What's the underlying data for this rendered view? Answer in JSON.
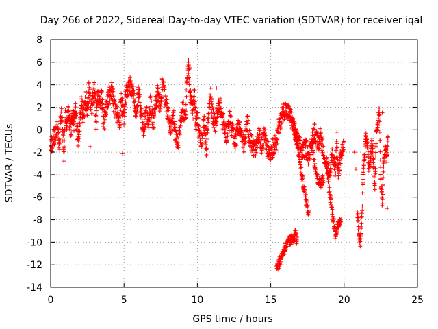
{
  "chart_data": {
    "type": "scatter",
    "title": "Day 266 of 2022, Sidereal Day-to-day VTEC variation (SDTVAR) for receiver iqal",
    "xlabel": "GPS time / hours",
    "ylabel": "SDTVAR / TECUs",
    "xlim": [
      0,
      25
    ],
    "ylim": [
      -14,
      8
    ],
    "xticks": [
      "0",
      "5",
      "10",
      "15",
      "20",
      "25"
    ],
    "yticks": [
      "8",
      "6",
      "4",
      "2",
      "0",
      "-2",
      "-4",
      "-6",
      "-8",
      "-10",
      "-12",
      "-14"
    ],
    "grid": true,
    "marker": "+",
    "color": "#ff0000",
    "series": [
      {
        "name": "SDTVAR",
        "trace": [
          [
            0.0,
            -1.3
          ],
          [
            0.05,
            -1.6
          ],
          [
            0.1,
            -1.1
          ],
          [
            0.5,
            0.2
          ],
          [
            0.6,
            -1.8
          ],
          [
            0.7,
            1.8
          ],
          [
            0.8,
            0.5
          ],
          [
            0.9,
            -2.0
          ],
          [
            1.0,
            1.5
          ],
          [
            1.1,
            0.0
          ],
          [
            1.2,
            2.0
          ],
          [
            1.3,
            0.7
          ],
          [
            1.4,
            0.0
          ],
          [
            1.5,
            1.5
          ],
          [
            1.6,
            0.5
          ],
          [
            1.7,
            1.8
          ],
          [
            1.8,
            0.2
          ],
          [
            1.9,
            -1.2
          ],
          [
            2.0,
            0.8
          ],
          [
            2.1,
            2.5
          ],
          [
            2.2,
            1.0
          ],
          [
            2.4,
            2.8
          ],
          [
            2.5,
            1.5
          ],
          [
            2.6,
            3.5
          ],
          [
            2.8,
            2.0
          ],
          [
            3.0,
            3.8
          ],
          [
            3.1,
            0.8
          ],
          [
            3.2,
            3.0
          ],
          [
            3.3,
            2.5
          ],
          [
            3.5,
            2.8
          ],
          [
            3.6,
            0.5
          ],
          [
            3.8,
            2.0
          ],
          [
            4.0,
            3.0
          ],
          [
            4.2,
            3.8
          ],
          [
            4.3,
            2.0
          ],
          [
            4.5,
            1.5
          ],
          [
            4.7,
            0.5
          ],
          [
            4.8,
            2.5
          ],
          [
            5.0,
            1.0
          ],
          [
            5.1,
            3.0
          ],
          [
            5.3,
            3.8
          ],
          [
            5.5,
            4.0
          ],
          [
            5.7,
            2.8
          ],
          [
            5.8,
            1.5
          ],
          [
            6.0,
            3.3
          ],
          [
            6.2,
            1.0
          ],
          [
            6.3,
            -0.5
          ],
          [
            6.5,
            1.5
          ],
          [
            6.7,
            0.8
          ],
          [
            6.8,
            2.5
          ],
          [
            7.0,
            0.5
          ],
          [
            7.2,
            2.5
          ],
          [
            7.3,
            3.3
          ],
          [
            7.5,
            2.0
          ],
          [
            7.6,
            4.2
          ],
          [
            7.8,
            2.8
          ],
          [
            8.0,
            1.5
          ],
          [
            8.2,
            0.0
          ],
          [
            8.4,
            1.0
          ],
          [
            8.5,
            -0.5
          ],
          [
            8.7,
            -1.0
          ],
          [
            8.9,
            0.8
          ],
          [
            9.0,
            2.0
          ],
          [
            9.2,
            1.0
          ],
          [
            9.3,
            4.5
          ],
          [
            9.4,
            5.8
          ],
          [
            9.5,
            3.0
          ],
          [
            9.6,
            2.5
          ],
          [
            9.7,
            1.5
          ],
          [
            9.8,
            3.3
          ],
          [
            9.9,
            0.5
          ],
          [
            10.0,
            1.5
          ],
          [
            10.1,
            0.0
          ],
          [
            10.3,
            -1.0
          ],
          [
            10.5,
            1.0
          ],
          [
            10.6,
            -2.0
          ],
          [
            10.7,
            0.5
          ],
          [
            10.9,
            3.0
          ],
          [
            11.0,
            1.5
          ],
          [
            11.2,
            0.5
          ],
          [
            11.4,
            1.5
          ],
          [
            11.5,
            2.5
          ],
          [
            11.7,
            1.0
          ],
          [
            11.9,
            0.0
          ],
          [
            12.0,
            -0.5
          ],
          [
            12.2,
            1.0
          ],
          [
            12.4,
            0.0
          ],
          [
            12.6,
            -1.0
          ],
          [
            12.8,
            0.5
          ],
          [
            13.0,
            -0.5
          ],
          [
            13.2,
            -1.5
          ],
          [
            13.4,
            0.8
          ],
          [
            13.6,
            -1.0
          ],
          [
            13.8,
            -1.5
          ],
          [
            14.0,
            -1.8
          ],
          [
            14.2,
            -0.5
          ],
          [
            14.4,
            -1.5
          ],
          [
            14.6,
            -0.2
          ],
          [
            14.8,
            -1.8
          ],
          [
            15.0,
            -2.0
          ],
          [
            15.2,
            -1.5
          ],
          [
            15.4,
            -1.0
          ],
          [
            15.6,
            0.5
          ],
          [
            15.8,
            1.5
          ],
          [
            16.0,
            1.8
          ],
          [
            16.2,
            1.5
          ],
          [
            16.4,
            1.0
          ],
          [
            16.6,
            0.0
          ],
          [
            16.8,
            -1.0
          ],
          [
            17.0,
            -1.5
          ],
          [
            17.2,
            -2.0
          ],
          [
            17.4,
            -1.5
          ],
          [
            17.6,
            -2.5
          ],
          [
            17.8,
            -1.0
          ],
          [
            18.0,
            0.0
          ],
          [
            18.2,
            -1.5
          ],
          [
            18.4,
            -0.5
          ],
          [
            18.6,
            -2.0
          ],
          [
            18.8,
            -3.0
          ],
          [
            19.0,
            -4.5
          ],
          [
            19.2,
            -2.0
          ],
          [
            19.4,
            -3.5
          ],
          [
            19.5,
            -1.0
          ],
          [
            19.6,
            -4.0
          ],
          [
            19.8,
            -2.0
          ],
          [
            20.0,
            -1.5
          ]
        ],
        "branches": [
          [
            [
              16.4,
              1.0
            ],
            [
              16.7,
              -0.5
            ],
            [
              16.9,
              -2.0
            ],
            [
              17.1,
              -4.0
            ],
            [
              17.3,
              -5.5
            ],
            [
              17.5,
              -7.0
            ],
            [
              17.6,
              -7.4
            ]
          ],
          [
            [
              17.8,
              -1.0
            ],
            [
              18.0,
              -3.0
            ],
            [
              18.2,
              -4.5
            ],
            [
              18.4,
              -4.8
            ],
            [
              18.6,
              -4.3
            ]
          ],
          [
            [
              18.8,
              -3.0
            ],
            [
              19.0,
              -5.5
            ],
            [
              19.2,
              -7.5
            ],
            [
              19.4,
              -9.3
            ],
            [
              19.6,
              -8.5
            ],
            [
              19.8,
              -7.8
            ]
          ]
        ],
        "segments": [
          [
            [
              15.4,
              -12.2
            ],
            [
              15.6,
              -11.8
            ],
            [
              15.8,
              -11.0
            ],
            [
              16.0,
              -10.5
            ],
            [
              16.2,
              -10.0
            ],
            [
              16.4,
              -9.8
            ],
            [
              16.6,
              -9.5
            ],
            [
              16.7,
              -9.2
            ],
            [
              16.8,
              -10.0
            ]
          ],
          [
            [
              20.9,
              -7.0
            ],
            [
              21.0,
              -9.5
            ],
            [
              21.1,
              -10.2
            ],
            [
              21.2,
              -8.0
            ],
            [
              21.3,
              -4.0
            ],
            [
              21.4,
              -2.0
            ],
            [
              21.5,
              -0.5
            ],
            [
              21.6,
              -1.5
            ],
            [
              21.7,
              -3.5
            ],
            [
              21.8,
              -2.5
            ],
            [
              21.9,
              -1.0
            ],
            [
              22.0,
              -3.0
            ],
            [
              22.1,
              -5.0
            ],
            [
              22.2,
              -0.5
            ],
            [
              22.3,
              0.5
            ],
            [
              22.4,
              1.8
            ],
            [
              22.5,
              -4.5
            ],
            [
              22.6,
              -6.5
            ],
            [
              22.7,
              -3.0
            ],
            [
              22.8,
              -1.5
            ],
            [
              22.9,
              -2.5
            ],
            [
              23.0,
              -0.5
            ]
          ]
        ],
        "outliers": [
          [
            9.4,
            6.2
          ],
          [
            9.5,
            5.5
          ],
          [
            7.6,
            4.5
          ],
          [
            4.9,
            -2.1
          ],
          [
            22.95,
            -7.0
          ],
          [
            20.7,
            -2.0
          ],
          [
            20.8,
            -3.5
          ],
          [
            22.6,
            1.5
          ],
          [
            2.7,
            -1.5
          ],
          [
            11.3,
            3.7
          ]
        ]
      }
    ]
  }
}
